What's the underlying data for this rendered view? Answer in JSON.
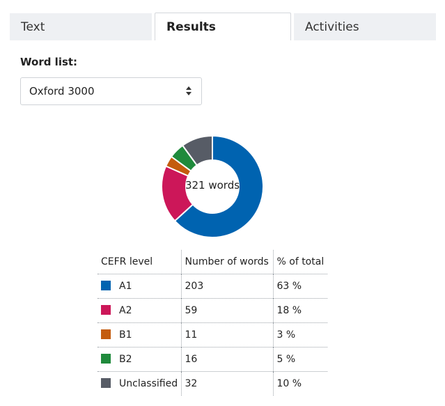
{
  "tabs": [
    {
      "label": "Text",
      "active": false
    },
    {
      "label": "Results",
      "active": true
    },
    {
      "label": "Activities",
      "active": false
    }
  ],
  "word_list": {
    "label": "Word list:",
    "selected": "Oxford 3000"
  },
  "chart_data": {
    "type": "pie",
    "center_label": "321 words",
    "categories": [
      "A1",
      "A2",
      "B1",
      "B2",
      "Unclassified"
    ],
    "values": [
      203,
      59,
      11,
      16,
      32
    ],
    "colors": [
      "#0063b0",
      "#cc1759",
      "#c45c0e",
      "#1f8a3c",
      "#575c66"
    ],
    "donut": true
  },
  "table": {
    "headers": [
      "CEFR level",
      "Number of words",
      "% of total"
    ],
    "rows": [
      {
        "level": "A1",
        "count": "203",
        "percent": "63 %",
        "color": "#0063b0"
      },
      {
        "level": "A2",
        "count": "59",
        "percent": "18 %",
        "color": "#cc1759"
      },
      {
        "level": "B1",
        "count": "11",
        "percent": "3 %",
        "color": "#c45c0e"
      },
      {
        "level": "B2",
        "count": "16",
        "percent": "5 %",
        "color": "#1f8a3c"
      },
      {
        "level": "Unclassified",
        "count": "32",
        "percent": "10 %",
        "color": "#575c66"
      }
    ]
  }
}
